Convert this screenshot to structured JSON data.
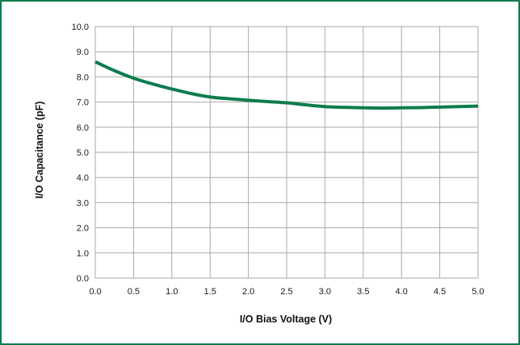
{
  "colors": {
    "frame_border": "#0e7c4e",
    "series_line": "#0e7c4e",
    "grid": "#a9a9a9"
  },
  "chart_data": {
    "type": "line",
    "title": "",
    "xlabel": "I/O Bias Voltage (V)",
    "ylabel": "I/O Capacitance (pF)",
    "xlim": [
      0,
      5
    ],
    "ylim": [
      0,
      10
    ],
    "x_ticks": [
      "0.0",
      "0.5",
      "1.0",
      "1.5",
      "2.0",
      "2.5",
      "3.0",
      "3.5",
      "4.0",
      "4.5",
      "5.0"
    ],
    "y_ticks": [
      "0.0",
      "1.0",
      "2.0",
      "3.0",
      "4.0",
      "5.0",
      "6.0",
      "7.0",
      "8.0",
      "9.0",
      "10.0"
    ],
    "grid": true,
    "legend": "none",
    "series": [
      {
        "x": [
          0.0,
          0.25,
          0.5,
          0.75,
          1.0,
          1.25,
          1.5,
          1.75,
          2.0,
          2.25,
          2.5,
          2.75,
          3.0,
          3.25,
          3.5,
          3.75,
          4.0,
          4.25,
          4.5,
          4.75,
          5.0
        ],
        "y": [
          8.6,
          8.25,
          7.95,
          7.72,
          7.52,
          7.34,
          7.2,
          7.13,
          7.07,
          7.02,
          6.97,
          6.89,
          6.82,
          6.79,
          6.77,
          6.76,
          6.77,
          6.78,
          6.8,
          6.82,
          6.84
        ]
      }
    ]
  }
}
